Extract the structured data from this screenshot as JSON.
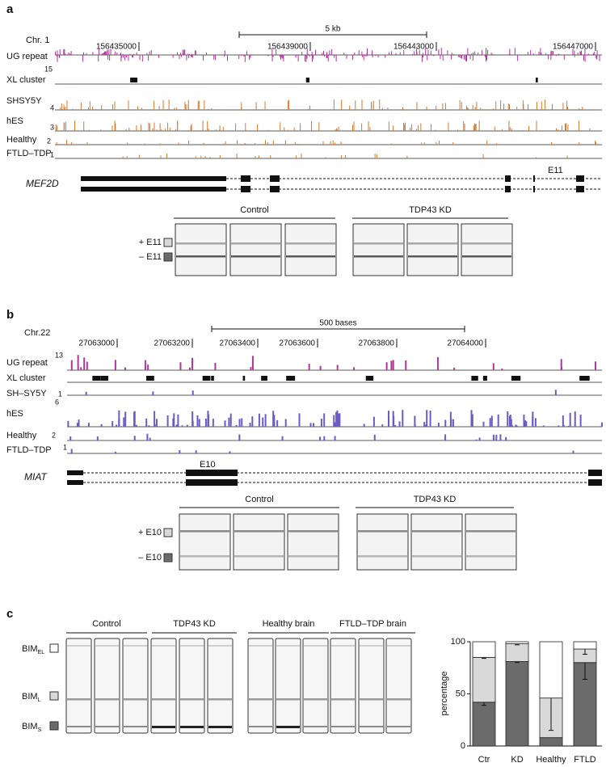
{
  "panel_a": {
    "letter": "a",
    "chromosome": "Chr. 1",
    "scale_label": "5 kb",
    "coordinates": [
      156435000,
      156439000,
      156443000,
      156447000
    ],
    "tracks": [
      {
        "label": "UG repeat",
        "max": 15
      },
      {
        "label": "XL cluster"
      },
      {
        "label": "SHSY5Y",
        "max": 4
      },
      {
        "label": "hES",
        "max": 3
      },
      {
        "label": "Healthy",
        "max": 2
      },
      {
        "label": "FTLD–TDP",
        "max": 1
      }
    ],
    "gene": "MEF2D",
    "exon": "E11",
    "groups": [
      "Control",
      "TDP43 KD"
    ],
    "isoforms": [
      "+ E11",
      "– E11"
    ]
  },
  "panel_b": {
    "letter": "b",
    "chromosome": "Chr.22",
    "scale_label": "500 bases",
    "coordinates": [
      27063000,
      27063200,
      27063400,
      27063600,
      27063800,
      27064000
    ],
    "tracks": [
      {
        "label": "UG repeat",
        "max": 13
      },
      {
        "label": "XL cluster"
      },
      {
        "label": "SH–SY5Y",
        "max": 1
      },
      {
        "label": "hES",
        "max": 6
      },
      {
        "label": "Healthy",
        "max": 2
      },
      {
        "label": "FTLD–TDP",
        "max": 1
      }
    ],
    "gene": "MIAT",
    "exon": "E10",
    "groups": [
      "Control",
      "TDP43 KD"
    ],
    "isoforms": [
      "+ E10",
      "– E10"
    ]
  },
  "panel_c": {
    "letter": "c",
    "groups": [
      "Control",
      "TDP43 KD",
      "Healthy brain",
      "FTLD–TDP brain"
    ],
    "isoforms": [
      {
        "base": "BIM",
        "sub": "EL"
      },
      {
        "base": "BIM",
        "sub": "L"
      },
      {
        "base": "BIM",
        "sub": "S"
      }
    ]
  },
  "chart_data": {
    "type": "stacked-bar",
    "ylabel": "percentage",
    "categories": [
      "Ctr",
      "KD",
      "Healthy",
      "FTLD"
    ],
    "ylim": [
      0,
      100
    ],
    "yticks": [
      0,
      50,
      100
    ],
    "series": [
      {
        "color": "#6b6b6b",
        "values": [
          42,
          81,
          8,
          80
        ],
        "errors": [
          3,
          1,
          null,
          16
        ]
      },
      {
        "color": "#d9d9d9",
        "values": [
          43,
          17,
          38,
          13
        ],
        "errors": [
          1,
          1,
          31,
          5
        ]
      },
      {
        "color": "#ffffff",
        "values": [
          15,
          2,
          54,
          7
        ]
      }
    ]
  }
}
